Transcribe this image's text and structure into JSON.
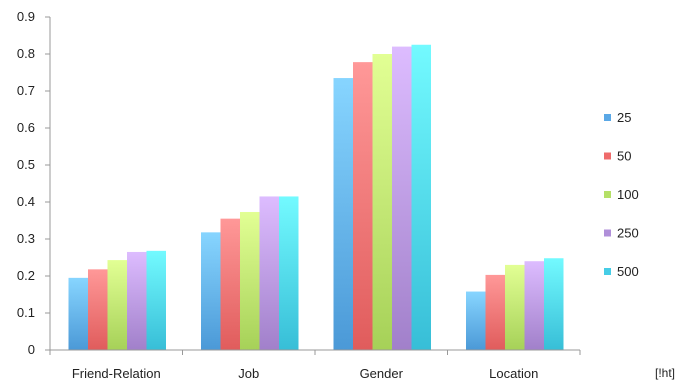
{
  "chart_data": {
    "type": "bar",
    "title": "",
    "xlabel": "",
    "ylabel": "",
    "ylim": [
      0,
      0.9
    ],
    "yticks": [
      0,
      0.1,
      0.2,
      0.3,
      0.4,
      0.5,
      0.6,
      0.7,
      0.8,
      0.9
    ],
    "ytick_labels": [
      "0",
      "0.1",
      "0.2",
      "0.3",
      "0.4",
      "0.5",
      "0.6",
      "0.7",
      "0.8",
      "0.9"
    ],
    "grid": false,
    "legend_position": "right",
    "categories": [
      "Friend-Relation",
      "Job",
      "Gender",
      "Location"
    ],
    "series": [
      {
        "name": "25",
        "color": "#5aa8e6",
        "values": [
          0.195,
          0.318,
          0.735,
          0.158
        ]
      },
      {
        "name": "50",
        "color": "#ef6b6b",
        "values": [
          0.218,
          0.355,
          0.778,
          0.203
        ]
      },
      {
        "name": "100",
        "color": "#b5e067",
        "values": [
          0.243,
          0.373,
          0.8,
          0.23
        ]
      },
      {
        "name": "250",
        "color": "#b08fd9",
        "values": [
          0.265,
          0.415,
          0.82,
          0.24
        ]
      },
      {
        "name": "500",
        "color": "#46cde6",
        "values": [
          0.268,
          0.415,
          0.825,
          0.248
        ]
      }
    ]
  },
  "trailing_text": "[!ht]"
}
